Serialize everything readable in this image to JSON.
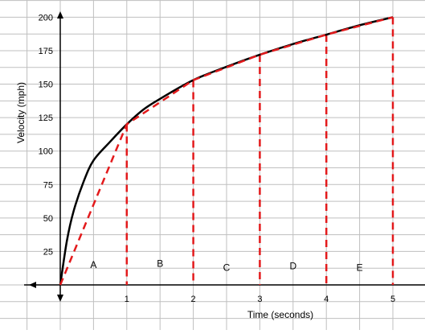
{
  "chart_data": {
    "type": "line",
    "title": "",
    "xlabel": "Time (seconds)",
    "ylabel": "Velocity (mph)",
    "xlim": [
      0,
      5
    ],
    "ylim": [
      0,
      200
    ],
    "x_ticks": [
      "1",
      "2",
      "3",
      "4",
      "5"
    ],
    "y_ticks": [
      "25",
      "50",
      "75",
      "100",
      "125",
      "150",
      "175",
      "200"
    ],
    "grid": true,
    "curve": {
      "style": "solid",
      "color": "#000000",
      "x": [
        0,
        0.1,
        0.2,
        0.35,
        0.5,
        0.75,
        1,
        1.25,
        1.5,
        2,
        2.5,
        3,
        3.5,
        4,
        4.5,
        5
      ],
      "y": [
        0,
        33,
        55,
        77,
        93,
        107,
        120,
        131,
        139,
        153,
        163,
        172,
        180,
        187,
        194,
        200
      ]
    },
    "secant_line": {
      "style": "dashed",
      "color": "#e31a1c",
      "x": [
        0,
        1,
        2,
        3,
        4,
        5
      ],
      "y": [
        0,
        120,
        153,
        172,
        187,
        200
      ]
    },
    "verticals": {
      "style": "dashed",
      "color": "#e31a1c",
      "x": [
        1,
        2,
        3,
        4,
        5
      ]
    },
    "regions": [
      {
        "label": "A",
        "x": 0.5,
        "y": 15
      },
      {
        "label": "B",
        "x": 1.5,
        "y": 16
      },
      {
        "label": "C",
        "x": 2.5,
        "y": 13
      },
      {
        "label": "D",
        "x": 3.5,
        "y": 14
      },
      {
        "label": "E",
        "x": 4.5,
        "y": 13
      }
    ]
  }
}
